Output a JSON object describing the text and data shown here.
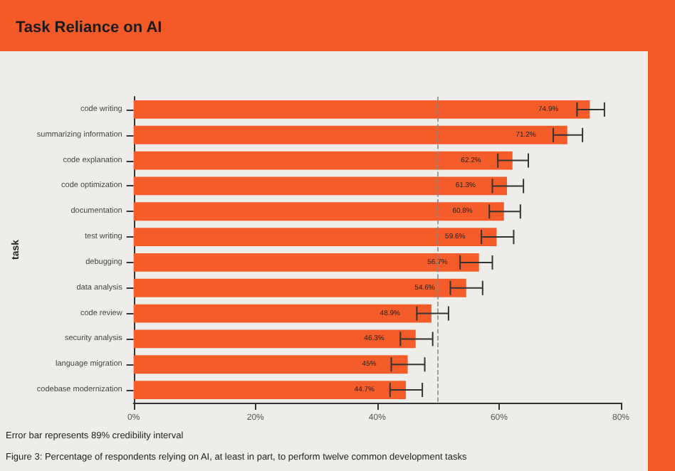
{
  "chart_data": {
    "type": "bar",
    "orientation": "horizontal",
    "title": "Task Reliance on AI",
    "ylabel": "task",
    "categories": [
      "code writing",
      "summarizing information",
      "code explanation",
      "code optimization",
      "documentation",
      "test writing",
      "debugging",
      "data analysis",
      "code review",
      "security analysis",
      "language migration",
      "codebase modernization"
    ],
    "values": [
      74.9,
      71.2,
      62.2,
      61.3,
      60.8,
      59.6,
      56.7,
      54.6,
      48.9,
      46.3,
      45,
      44.7
    ],
    "value_labels": [
      "74.9%",
      "71.2%",
      "62.2%",
      "61.3%",
      "60.8%",
      "59.6%",
      "56.7%",
      "54.6%",
      "48.9%",
      "46.3%",
      "45%",
      "44.7%"
    ],
    "errors": [
      [
        72.8,
        77.3
      ],
      [
        68.9,
        73.7
      ],
      [
        59.8,
        64.8
      ],
      [
        58.9,
        64.0
      ],
      [
        58.4,
        63.5
      ],
      [
        57.1,
        62.4
      ],
      [
        53.6,
        58.9
      ],
      [
        52.0,
        57.3
      ],
      [
        46.5,
        51.7
      ],
      [
        43.8,
        49.1
      ],
      [
        42.3,
        47.8
      ],
      [
        42.1,
        47.4
      ]
    ],
    "color": "#f45c29",
    "xlim": [
      0,
      80
    ],
    "xticks": [
      {
        "value": 0,
        "label": "0%"
      },
      {
        "value": 20,
        "label": "20%"
      },
      {
        "value": 40,
        "label": "40%"
      },
      {
        "value": 60,
        "label": "60%"
      },
      {
        "value": 80,
        "label": "80%"
      }
    ],
    "ref_lines": [
      {
        "axis": "x",
        "value": 50,
        "color": "#888888",
        "line_style": "dashed"
      }
    ],
    "grid": false,
    "annotations": [
      "Error bar represents 89% credibility interval",
      "Figure 3: Percentage of respondents relying on AI, at least in part, to perform twelve common development tasks"
    ]
  }
}
